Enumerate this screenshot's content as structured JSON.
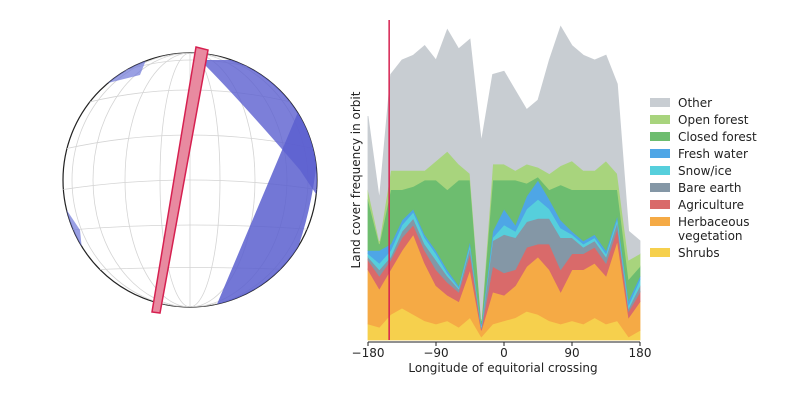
{
  "chart_data": {
    "type": "stacked-area",
    "x_label": "Longitude of equitorial crossing",
    "y_label": "Land cover frequency in orbit",
    "xlim": [
      -180,
      180
    ],
    "xticks": [
      {
        "value": -180,
        "label": "−180"
      },
      {
        "value": -90,
        "label": "−90"
      },
      0,
      90,
      180
    ],
    "ylim": [
      0,
      1
    ],
    "marker_x": -152,
    "marker_color": "#d62050",
    "x": [
      -180,
      -165,
      -150,
      -135,
      -120,
      -105,
      -90,
      -75,
      -60,
      -45,
      -30,
      -15,
      0,
      15,
      30,
      45,
      60,
      75,
      90,
      105,
      120,
      135,
      150,
      165,
      180
    ],
    "series": [
      {
        "name": "Shrubs",
        "color": "#f6d04d",
        "values": [
          0.05,
          0.04,
          0.08,
          0.1,
          0.08,
          0.06,
          0.05,
          0.06,
          0.04,
          0.07,
          0.01,
          0.05,
          0.06,
          0.07,
          0.09,
          0.08,
          0.06,
          0.05,
          0.06,
          0.05,
          0.07,
          0.05,
          0.06,
          0.01,
          0.03
        ]
      },
      {
        "name": "Herbaceous vegetation",
        "color": "#f5aa45",
        "values": [
          0.17,
          0.12,
          0.14,
          0.18,
          0.25,
          0.18,
          0.12,
          0.08,
          0.08,
          0.15,
          0.02,
          0.1,
          0.08,
          0.1,
          0.14,
          0.18,
          0.16,
          0.1,
          0.16,
          0.17,
          0.17,
          0.15,
          0.25,
          0.06,
          0.09
        ]
      },
      {
        "name": "Agriculture",
        "color": "#d96a6a",
        "values": [
          0.03,
          0.04,
          0.03,
          0.04,
          0.03,
          0.04,
          0.05,
          0.04,
          0.03,
          0.05,
          0.005,
          0.08,
          0.07,
          0.05,
          0.06,
          0.04,
          0.08,
          0.07,
          0.05,
          0.05,
          0.05,
          0.04,
          0.04,
          0.02,
          0.03
        ]
      },
      {
        "name": "Bare earth",
        "color": "#8497a6",
        "values": [
          0.01,
          0.02,
          0.01,
          0.02,
          0.02,
          0.02,
          0.03,
          0.02,
          0.01,
          0.02,
          0.005,
          0.08,
          0.12,
          0.1,
          0.08,
          0.08,
          0.08,
          0.1,
          0.05,
          0.02,
          0.02,
          0.02,
          0.02,
          0.01,
          0.02
        ]
      },
      {
        "name": "Snow/ice",
        "color": "#56cfdc",
        "values": [
          0.01,
          0.02,
          0.02,
          0.02,
          0.02,
          0.02,
          0.02,
          0.01,
          0.005,
          0.01,
          0.005,
          0.01,
          0.03,
          0.02,
          0.04,
          0.06,
          0.03,
          0.03,
          0.01,
          0.01,
          0.01,
          0.01,
          0.01,
          0.01,
          0.02
        ]
      },
      {
        "name": "Fresh water",
        "color": "#4ea6e6",
        "values": [
          0.01,
          0.04,
          0.02,
          0.015,
          0.01,
          0.01,
          0.01,
          0.01,
          0.005,
          0.01,
          0.005,
          0.02,
          0.05,
          0.02,
          0.04,
          0.06,
          0.03,
          0.025,
          0.01,
          0.01,
          0.01,
          0.01,
          0.01,
          0.015,
          0.01
        ]
      },
      {
        "name": "Closed forest",
        "color": "#6dbd6f",
        "values": [
          0.16,
          0.02,
          0.17,
          0.095,
          0.07,
          0.17,
          0.22,
          0.25,
          0.33,
          0.19,
          0.01,
          0.16,
          0.09,
          0.14,
          0.04,
          0.01,
          0.03,
          0.11,
          0.13,
          0.16,
          0.14,
          0.19,
          0.08,
          0.065,
          0.03
        ]
      },
      {
        "name": "Open forest",
        "color": "#a8d47d",
        "values": [
          0.03,
          0.01,
          0.06,
          0.06,
          0.05,
          0.03,
          0.06,
          0.12,
          0.05,
          0.02,
          0.005,
          0.05,
          0.05,
          0.03,
          0.06,
          0.03,
          0.05,
          0.06,
          0.09,
          0.06,
          0.06,
          0.09,
          0.05,
          0.06,
          0.04
        ]
      },
      {
        "name": "Other",
        "color": "#c8cdd2",
        "values": [
          0.23,
          0.13,
          0.3,
          0.345,
          0.36,
          0.39,
          0.315,
          0.38,
          0.36,
          0.42,
          0.555,
          0.28,
          0.29,
          0.25,
          0.17,
          0.21,
          0.355,
          0.435,
          0.36,
          0.36,
          0.345,
          0.33,
          0.28,
          0.09,
          0.04
        ]
      }
    ]
  }
}
